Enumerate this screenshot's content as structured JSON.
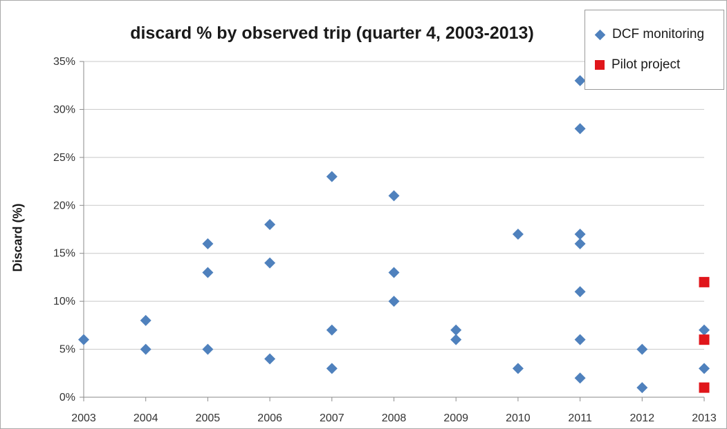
{
  "chart_data": {
    "type": "scatter",
    "title": "discard % by observed trip (quarter 4, 2003-2013)",
    "xlabel": "",
    "ylabel": "Discard (%)",
    "x_ticks": [
      "2003",
      "2004",
      "2005",
      "2006",
      "2007",
      "2008",
      "2009",
      "2010",
      "2011",
      "2012",
      "2013"
    ],
    "xlim": [
      2003,
      2013
    ],
    "y_ticks": [
      "0%",
      "5%",
      "10%",
      "15%",
      "20%",
      "25%",
      "30%",
      "35%"
    ],
    "ylim": [
      0,
      35
    ],
    "grid": true,
    "legend_position": "top-right",
    "series": [
      {
        "name": "DCF monitoring",
        "marker": "diamond",
        "color": "#4f81bd",
        "points": [
          [
            2003,
            6
          ],
          [
            2004,
            8
          ],
          [
            2004,
            5
          ],
          [
            2005,
            16
          ],
          [
            2005,
            13
          ],
          [
            2005,
            5
          ],
          [
            2006,
            18
          ],
          [
            2006,
            14
          ],
          [
            2006,
            4
          ],
          [
            2007,
            23
          ],
          [
            2007,
            7
          ],
          [
            2007,
            3
          ],
          [
            2008,
            21
          ],
          [
            2008,
            13
          ],
          [
            2008,
            10
          ],
          [
            2009,
            7
          ],
          [
            2009,
            6
          ],
          [
            2010,
            17
          ],
          [
            2010,
            3
          ],
          [
            2011,
            33
          ],
          [
            2011,
            28
          ],
          [
            2011,
            17
          ],
          [
            2011,
            16
          ],
          [
            2011,
            11
          ],
          [
            2011,
            6
          ],
          [
            2011,
            2
          ],
          [
            2012,
            5
          ],
          [
            2012,
            1
          ],
          [
            2013,
            7
          ],
          [
            2013,
            3
          ]
        ]
      },
      {
        "name": "Pilot project",
        "marker": "square",
        "color": "#e0161b",
        "points": [
          [
            2013,
            12
          ],
          [
            2013,
            6
          ],
          [
            2013,
            1
          ]
        ]
      }
    ]
  }
}
